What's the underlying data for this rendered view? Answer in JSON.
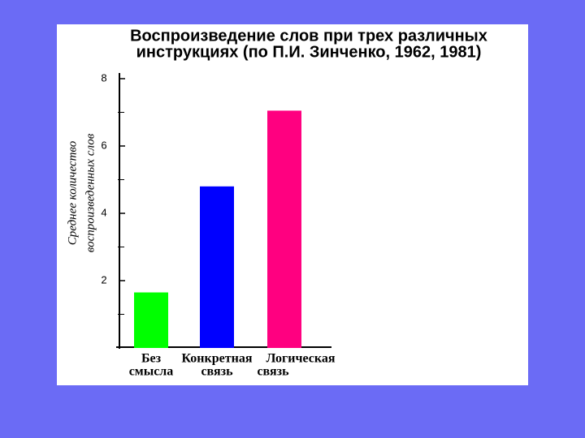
{
  "chart_data": {
    "type": "bar",
    "title": [
      "Воспроизведение слов при трех различных",
      "инструкциях (по П.И. Зинченко, 1962, 1981)"
    ],
    "y_label": [
      "Среднее количество",
      "воспроизведенных слов"
    ],
    "categories": [
      [
        "Без",
        "смысла"
      ],
      [
        "Конкретная",
        "связь"
      ],
      [
        "Логическая",
        "связь"
      ]
    ],
    "values": [
      1.65,
      4.8,
      7.05
    ],
    "colors": [
      "#00ff00",
      "#0000ff",
      "#ff0080"
    ],
    "ylim": [
      0,
      8
    ],
    "yticks": [
      2,
      4,
      6,
      8
    ],
    "minor_yticks": [
      1,
      3,
      5,
      7
    ]
  }
}
